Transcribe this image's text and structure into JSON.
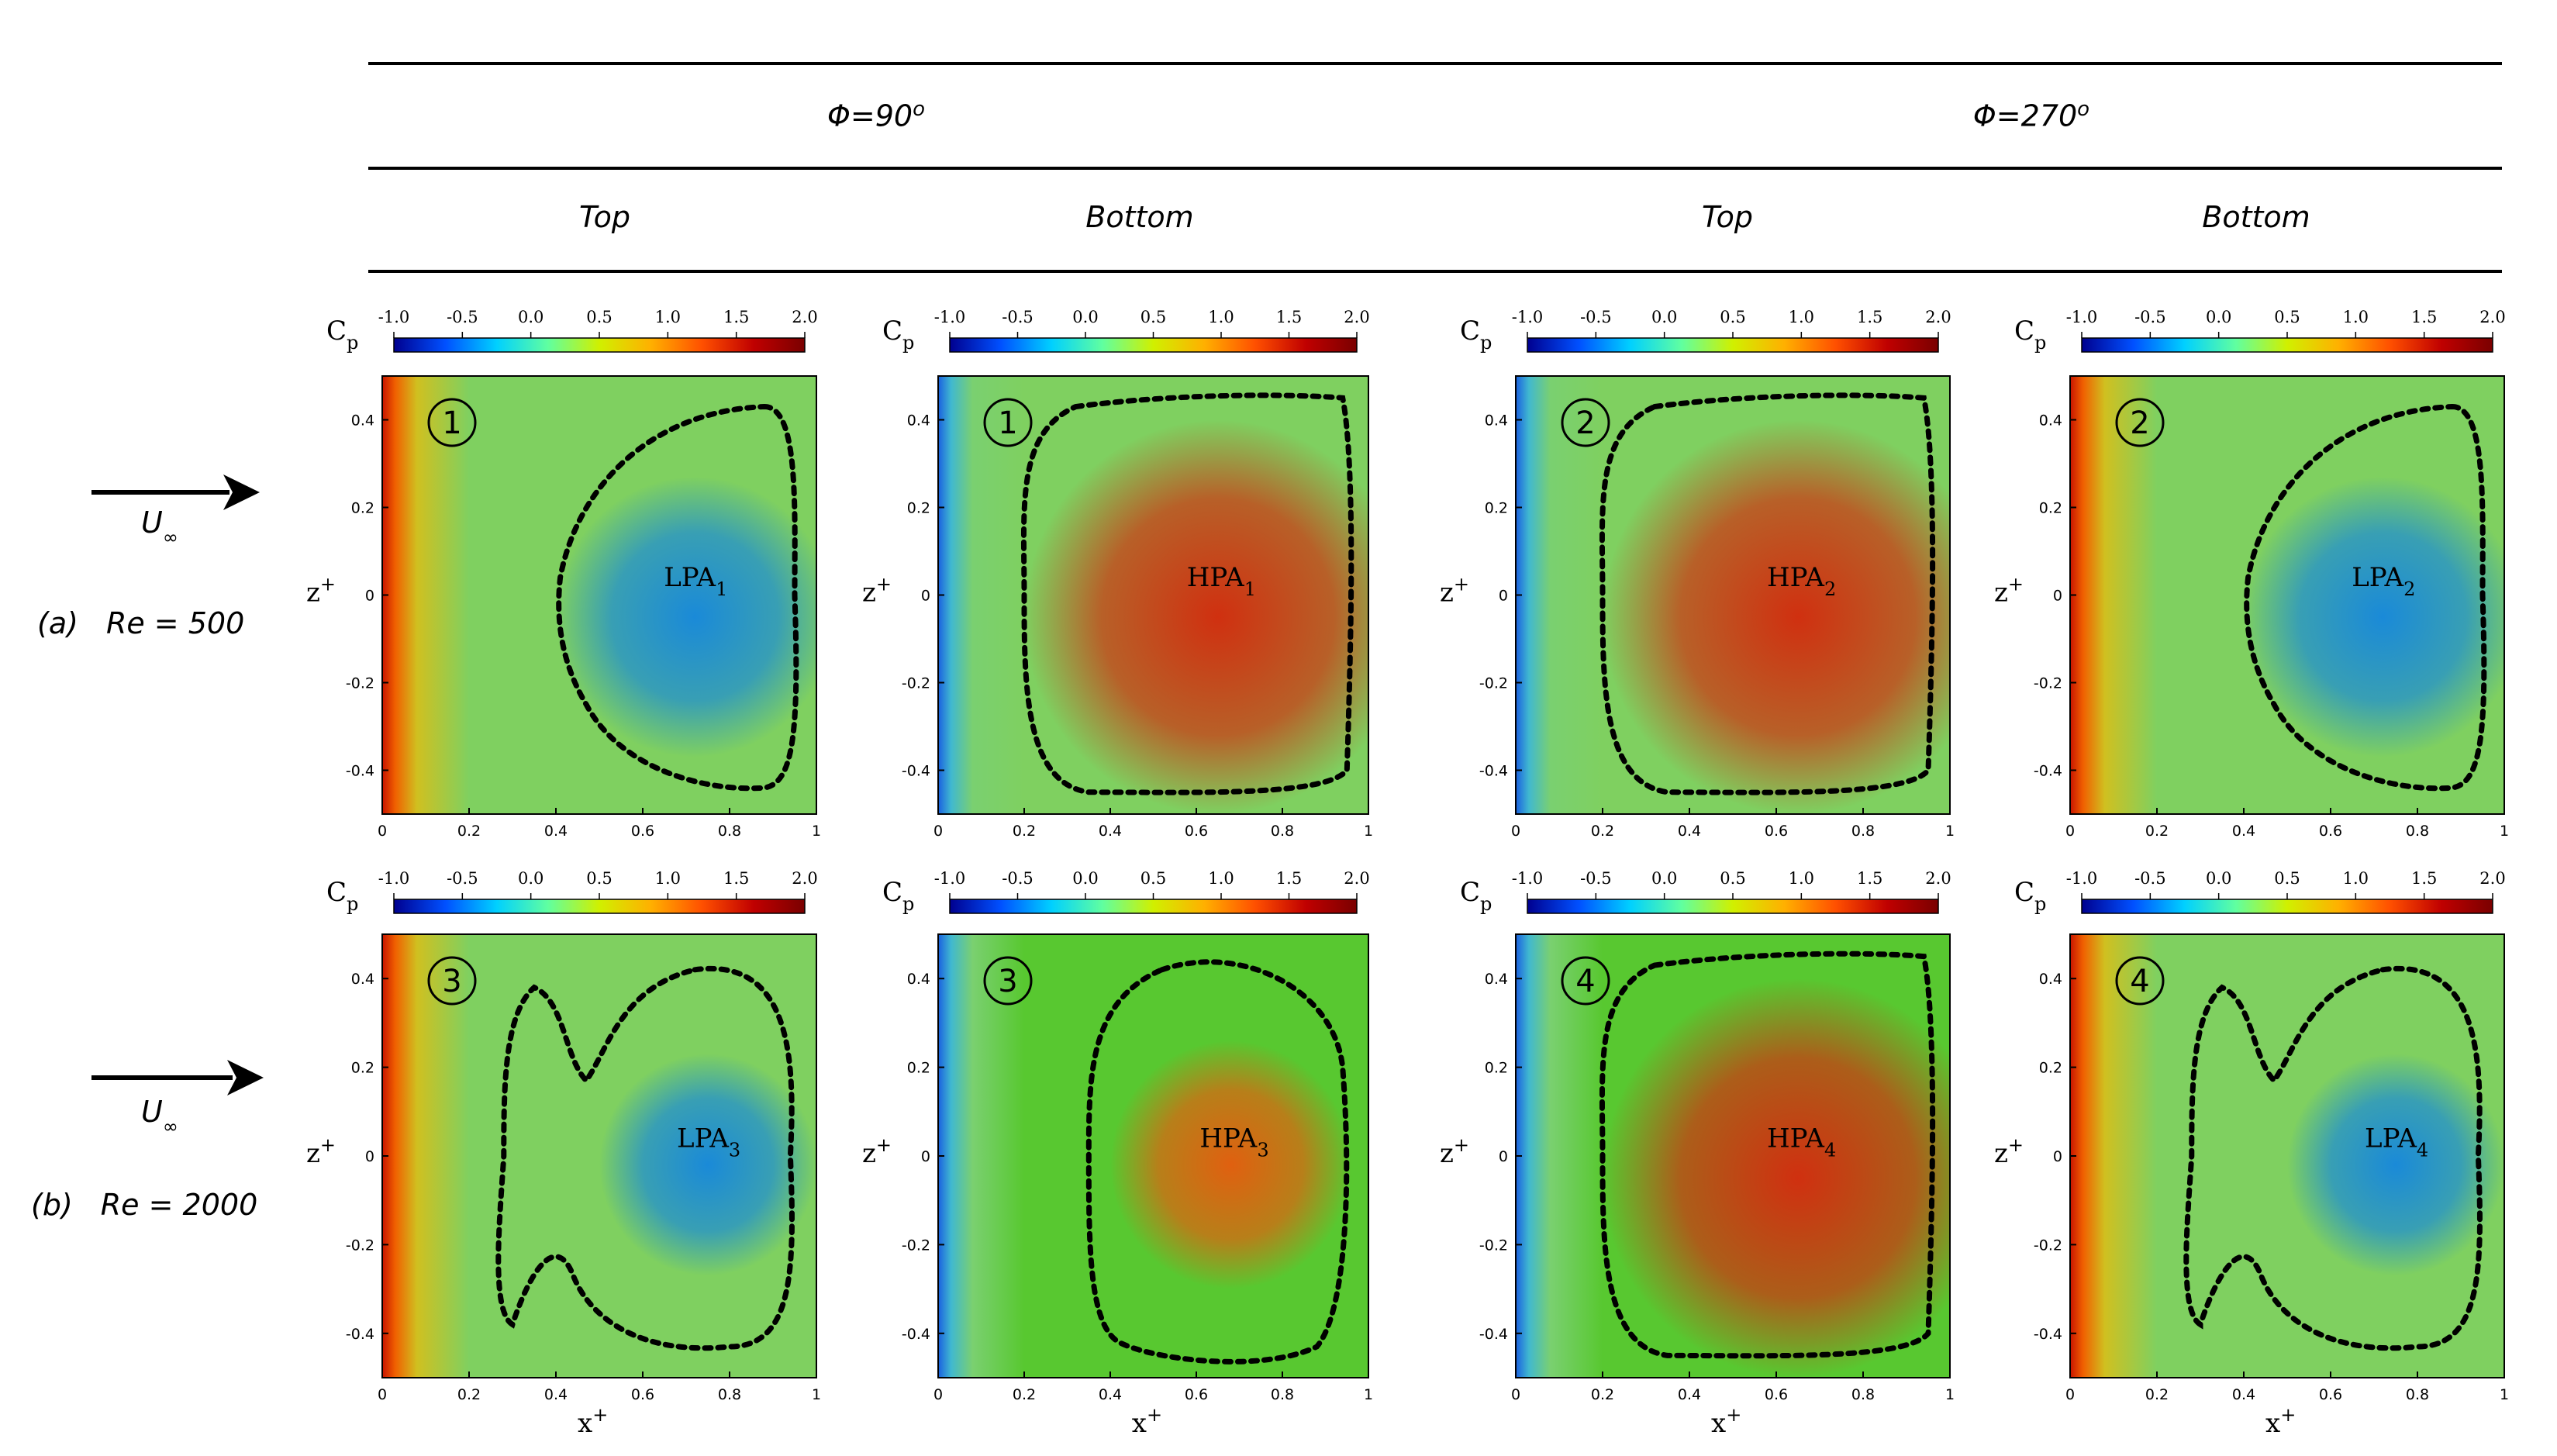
{
  "header": {
    "phi_90": "Φ=90",
    "phi_270": "Φ=270",
    "degree": "o",
    "columns": [
      "Top",
      "Bottom",
      "Top",
      "Bottom"
    ]
  },
  "rows": [
    {
      "letter": "(a)",
      "re_label": "Re = 500",
      "flow_label": "U",
      "flow_sub": "∞"
    },
    {
      "letter": "(b)",
      "re_label": "Re = 2000",
      "flow_label": "U",
      "flow_sub": "∞"
    }
  ],
  "colorbar": {
    "variable": "C",
    "variable_sub": "p",
    "ticks": [
      "-1.0",
      "-0.5",
      "0.0",
      "0.5",
      "1.0",
      "1.5",
      "2.0"
    ],
    "stops": [
      "#00008f",
      "#0050ff",
      "#00d0ff",
      "#60ffa0",
      "#d0f000",
      "#ffb000",
      "#ff5000",
      "#c00000",
      "#7a0000"
    ]
  },
  "axes": {
    "xlabel": "x",
    "ylabel": "z",
    "sup": "+",
    "x_ticks": [
      "0",
      "0.2",
      "0.4",
      "0.6",
      "0.8",
      "1"
    ],
    "y_ticks": [
      "0.4",
      "0.2",
      "0",
      "-0.2",
      "-0.4"
    ]
  },
  "panels": [
    {
      "id": "1",
      "label": "LPA",
      "sub": "1",
      "type": "low"
    },
    {
      "id": "1",
      "label": "HPA",
      "sub": "1",
      "type": "high"
    },
    {
      "id": "2",
      "label": "HPA",
      "sub": "2",
      "type": "high"
    },
    {
      "id": "2",
      "label": "LPA",
      "sub": "2",
      "type": "low"
    },
    {
      "id": "3",
      "label": "LPA",
      "sub": "3",
      "type": "low2"
    },
    {
      "id": "3",
      "label": "HPA",
      "sub": "3",
      "type": "high2"
    },
    {
      "id": "4",
      "label": "HPA",
      "sub": "4",
      "type": "high"
    },
    {
      "id": "4",
      "label": "LPA",
      "sub": "4",
      "type": "low2"
    }
  ],
  "colors": {
    "edge_red": "#c81400",
    "field_green": "#7fd060",
    "low_blue": "#1a8ad8",
    "high_red": "#d03010"
  }
}
